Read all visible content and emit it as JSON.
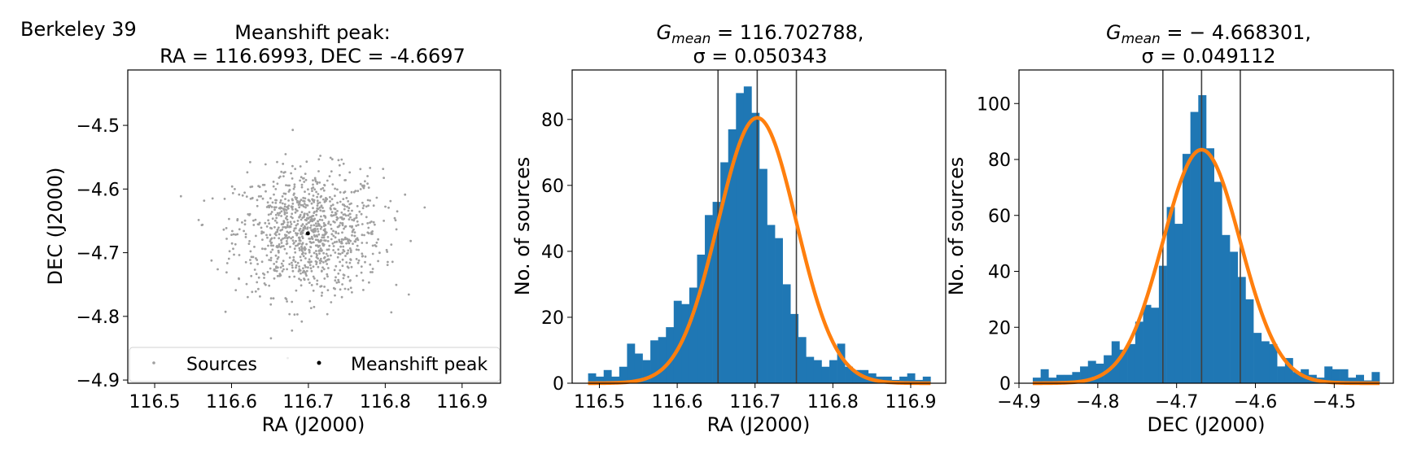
{
  "figure_label": "Berkeley 39",
  "chart_data": [
    {
      "type": "scatter",
      "title_line1": "Meanshift peak:",
      "title_line2": "RA = 116.6993, DEC = -4.6697",
      "xlabel": "RA (J2000)",
      "ylabel": "DEC (J2000)",
      "xlim": [
        116.465,
        116.95
      ],
      "ylim": [
        -4.905,
        -4.413
      ],
      "xticks": [
        116.5,
        116.6,
        116.7,
        116.8,
        116.9
      ],
      "xtick_labels": [
        "116.5",
        "116.6",
        "116.7",
        "116.8",
        "116.9"
      ],
      "yticks": [
        -4.5,
        -4.6,
        -4.7,
        -4.8,
        -4.9
      ],
      "ytick_labels": [
        "−4.5",
        "−4.6",
        "−4.7",
        "−4.8",
        "−4.9"
      ],
      "series": [
        {
          "name": "Sources",
          "color": "#a0a0a0",
          "n_points": 1030,
          "center": [
            116.7005,
            -4.668
          ],
          "sigma": [
            0.0503,
            0.0491
          ]
        },
        {
          "name": "Meanshift peak",
          "color": "#000000",
          "x": [
            116.6993
          ],
          "y": [
            -4.6697
          ]
        }
      ],
      "legend": {
        "position": "bottom",
        "entries": [
          "Sources",
          "Meanshift peak"
        ]
      }
    },
    {
      "type": "bar",
      "title_line1": "G",
      "title_sub": "mean",
      "title_rest": " = 116.702788,",
      "title_line2": "σ = 0.050343",
      "xlabel": "RA (J2000)",
      "ylabel": "No. of sources",
      "xlim": [
        116.465,
        116.945
      ],
      "ylim": [
        0,
        95
      ],
      "xticks": [
        116.5,
        116.6,
        116.7,
        116.8,
        116.9
      ],
      "xtick_labels": [
        "116.5",
        "116.6",
        "116.7",
        "116.8",
        "116.9"
      ],
      "yticks": [
        0,
        20,
        40,
        60,
        80
      ],
      "ytick_labels": [
        "0",
        "20",
        "40",
        "60",
        "80"
      ],
      "bin_start": 116.4855,
      "bin_width": 0.01,
      "values": [
        3,
        2,
        4,
        2,
        5,
        12,
        9,
        7,
        13,
        14,
        17,
        25,
        24,
        29,
        39,
        51,
        55,
        67,
        77,
        88,
        90,
        82,
        65,
        48,
        44,
        30,
        21,
        14,
        8,
        7,
        5,
        7,
        12,
        5,
        4,
        4,
        3,
        2,
        2,
        1,
        2,
        3,
        1,
        2
      ],
      "bar_color": "#1f77b4",
      "fit": {
        "color": "#ff7f0e",
        "mean": 116.702788,
        "sigma": 0.050343,
        "amplitude": 80.5
      },
      "vlines": [
        116.652445,
        116.702788,
        116.753131
      ],
      "vline_color": "#404040"
    },
    {
      "type": "bar",
      "title_line1": "G",
      "title_sub": "mean",
      "title_rest": " = − 4.668301,",
      "title_line2": "σ = 0.049112",
      "xlabel": "DEC (J2000)",
      "ylabel": "No. of sources",
      "xlim": [
        -4.9,
        -4.425
      ],
      "ylim": [
        0,
        112
      ],
      "xticks": [
        -4.9,
        -4.8,
        -4.7,
        -4.6,
        -4.5
      ],
      "xtick_labels": [
        "−4.9",
        "−4.8",
        "−4.7",
        "−4.6",
        "−4.5"
      ],
      "yticks": [
        0,
        20,
        40,
        60,
        80,
        100
      ],
      "ytick_labels": [
        "0",
        "20",
        "40",
        "60",
        "80",
        "100"
      ],
      "bin_start": -4.8825,
      "bin_width": 0.01,
      "values": [
        2,
        5,
        2,
        3,
        3,
        4,
        6,
        8,
        7,
        10,
        15,
        12,
        14,
        22,
        28,
        27,
        42,
        63,
        57,
        82,
        97,
        103,
        84,
        72,
        53,
        47,
        38,
        30,
        18,
        15,
        14,
        6,
        9,
        4,
        5,
        3,
        2,
        6,
        5,
        5,
        2,
        3,
        1,
        4
      ],
      "bar_color": "#1f77b4",
      "fit": {
        "color": "#ff7f0e",
        "mean": -4.668301,
        "sigma": 0.049112,
        "amplitude": 83.5
      },
      "vlines": [
        -4.717413,
        -4.668301,
        -4.619189
      ],
      "vline_color": "#404040"
    }
  ]
}
